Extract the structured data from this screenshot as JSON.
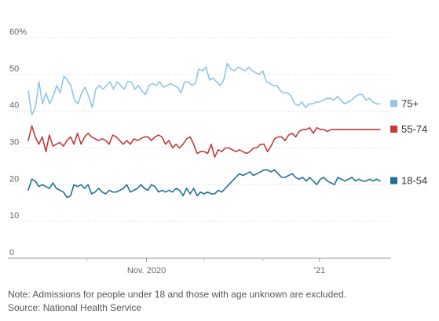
{
  "chart_data": {
    "type": "line",
    "y_ticks": [
      "0",
      "10",
      "20",
      "30",
      "40",
      "50",
      "60%"
    ],
    "ylim": [
      0,
      60
    ],
    "x_tick_labels": [
      {
        "label": "Nov. 2020",
        "x": 41
      },
      {
        "label": "’21",
        "x": 101
      }
    ],
    "xlim": [
      0,
      122
    ],
    "grid": true,
    "legend": "right, at line ends",
    "series": [
      {
        "name": "75+",
        "color": "#8fc6e6",
        "values": [
          45.5,
          39,
          41,
          48,
          42,
          45,
          42,
          44,
          47,
          45,
          49.5,
          48.5,
          47,
          43,
          42,
          45,
          46.5,
          44,
          41,
          46,
          47,
          46,
          47,
          48,
          46,
          48,
          47,
          46,
          48,
          48,
          46,
          47,
          45.5,
          44.5,
          47,
          47.5,
          47,
          48,
          46.5,
          47,
          47.5,
          47,
          46.5,
          45,
          48,
          48,
          47,
          47.5,
          51.5,
          51,
          52,
          48.5,
          49,
          48,
          47,
          48.5,
          53,
          51.5,
          51,
          52,
          51.5,
          51,
          52,
          51,
          50.5,
          50,
          51,
          48,
          47.5,
          47,
          47,
          45.5,
          45,
          45,
          44,
          42,
          41.5,
          42.5,
          41,
          42,
          42,
          42.5,
          42.5,
          43,
          43.5,
          43.5,
          43,
          44,
          43,
          42,
          42.5,
          43,
          44,
          44.5,
          44.5,
          43,
          43.5,
          42.5,
          42,
          42
        ]
      },
      {
        "name": "55-74",
        "color": "#c23a3b",
        "values": [
          32,
          36,
          33,
          31,
          33,
          29,
          33.5,
          30.5,
          31,
          31.5,
          30.5,
          32,
          33,
          31,
          34,
          31,
          33,
          34,
          33,
          32.5,
          32,
          32.5,
          32,
          31,
          33.5,
          33,
          32,
          31,
          32,
          31,
          32.5,
          32,
          32.5,
          33,
          33,
          32,
          33,
          33.5,
          33,
          31,
          32,
          30,
          31,
          30,
          31,
          32.5,
          33,
          31,
          28.5,
          29,
          29,
          28.5,
          31,
          27.5,
          29.5,
          29,
          30,
          30,
          29.5,
          29,
          29.5,
          29,
          28.5,
          29,
          30,
          30,
          31,
          31,
          29,
          30.5,
          32.5,
          33,
          33,
          32,
          33.5,
          34,
          33,
          34.5,
          35,
          35,
          35.5,
          34,
          35.5,
          35,
          35,
          34.5,
          35,
          35,
          35,
          35,
          35,
          35,
          35,
          35,
          35,
          35,
          35,
          35,
          35,
          35,
          35
        ]
      },
      {
        "name": "18-54",
        "color": "#1f6f94",
        "values": [
          18.5,
          21.5,
          21,
          19.5,
          20,
          19.5,
          19,
          20.5,
          19,
          18.5,
          18,
          16.5,
          17,
          20,
          19.5,
          20,
          19,
          20,
          17.5,
          18,
          19,
          18,
          17.5,
          18.5,
          18,
          18,
          18.5,
          19,
          20,
          18,
          18.5,
          19,
          20,
          19,
          18.5,
          20,
          19.5,
          18,
          18.5,
          18,
          18.5,
          18,
          19,
          18.5,
          17,
          19,
          17.5,
          19,
          17,
          18,
          17.5,
          18,
          17.5,
          17.5,
          18.5,
          18,
          19,
          20,
          21,
          22,
          23,
          22.5,
          23,
          23.5,
          22.5,
          23,
          23.5,
          24,
          24,
          23.5,
          24,
          23,
          22,
          22,
          22.5,
          23,
          22,
          21.5,
          22,
          21,
          22,
          21,
          20,
          21.5,
          22,
          21,
          20.5,
          20,
          22,
          21.5,
          21,
          21.5,
          22,
          21,
          21.5,
          21,
          21,
          21.5,
          21,
          21.5,
          21
        ]
      }
    ]
  },
  "legend": {
    "items": [
      {
        "label": "75+",
        "color": "#8fc6e6"
      },
      {
        "label": "55-74",
        "color": "#c23a3b"
      },
      {
        "label": "18-54",
        "color": "#1f6f94"
      }
    ]
  },
  "notes": {
    "note": "Note: Admissions for people under 18 and those with age unknown are excluded.",
    "source": "Source: National Health Service"
  }
}
